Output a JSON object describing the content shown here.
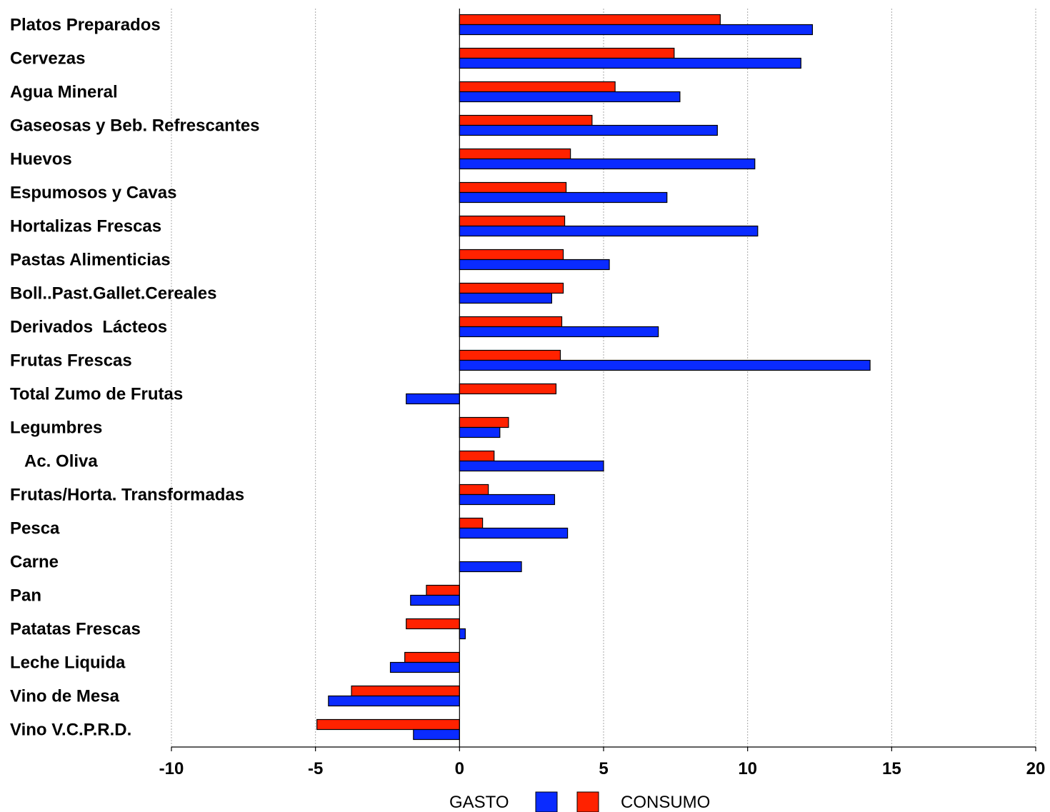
{
  "chart_data": {
    "type": "bar",
    "orientation": "horizontal",
    "categories": [
      "Platos Preparados",
      "Cervezas",
      "Agua Mineral",
      "Gaseosas y Beb. Refrescantes",
      "Huevos",
      "Espumosos y Cavas",
      "Hortalizas Frescas",
      "Pastas Alimenticias",
      "Boll..Past.Gallet.Cereales",
      "Derivados  Lácteos",
      "Frutas Frescas",
      "Total Zumo de Frutas",
      "Legumbres",
      "  Ac. Oliva",
      "Frutas/Horta. Transformadas",
      "Pesca",
      "Carne",
      "Pan",
      "Patatas Frescas",
      "Leche Liquida",
      "Vino de Mesa",
      "Vino V.C.P.R.D."
    ],
    "series": [
      {
        "name": "CONSUMO",
        "color": "#ff2200",
        "values": [
          9.05,
          7.45,
          5.4,
          4.6,
          3.85,
          3.7,
          3.65,
          3.6,
          3.6,
          3.55,
          3.5,
          3.35,
          1.7,
          1.2,
          1.0,
          0.8,
          0.0,
          -1.15,
          -1.85,
          -1.9,
          -3.75,
          -4.95
        ]
      },
      {
        "name": "GASTO",
        "color": "#0a2bff",
        "values": [
          12.25,
          11.85,
          7.65,
          8.95,
          10.25,
          7.2,
          10.35,
          5.2,
          3.2,
          6.9,
          14.25,
          -1.85,
          1.4,
          5.0,
          3.3,
          3.75,
          2.15,
          -1.7,
          0.2,
          -2.4,
          -4.55,
          -1.6
        ]
      }
    ],
    "xlim": [
      -10,
      20
    ],
    "xticks": [
      -10,
      -5,
      0,
      5,
      10,
      15,
      20
    ],
    "grid": "vertical-dashed",
    "legend": {
      "position": "bottom-center",
      "entries": [
        {
          "label": "GASTO",
          "color": "#0a2bff"
        },
        {
          "label": "CONSUMO",
          "color": "#ff2200"
        }
      ]
    },
    "title": "",
    "xlabel": "",
    "ylabel": ""
  }
}
